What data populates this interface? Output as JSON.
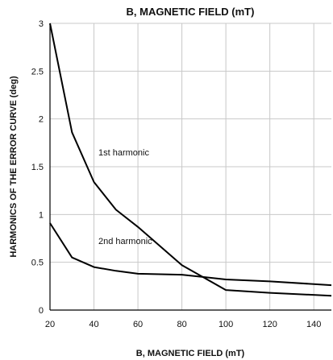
{
  "chart_data": {
    "type": "line",
    "title": "B, MAGNETIC FIELD (mT)",
    "xlabel": "B, MAGNETIC FIELD (mT)",
    "ylabel": "HARMONICS OF THE ERROR CURVE (deg)",
    "xlim": [
      20,
      148
    ],
    "ylim": [
      0,
      3
    ],
    "xticks": [
      20,
      40,
      60,
      80,
      100,
      120,
      140
    ],
    "yticks": [
      0,
      0.5,
      1,
      1.5,
      2,
      2.5,
      3
    ],
    "xtick_labels": [
      "20",
      "40",
      "60",
      "80",
      "100",
      "120",
      "140"
    ],
    "ytick_labels": [
      "0",
      "0.5",
      "1",
      "1.5",
      "2",
      "2.5",
      "3"
    ],
    "grid": true,
    "legend": false,
    "series_color": "#000000",
    "grid_color": "#c8c8c8",
    "series": [
      {
        "name": "1st harmonic",
        "x": [
          20,
          30,
          40,
          50,
          60,
          80,
          100,
          120,
          148
        ],
        "y": [
          3.0,
          1.86,
          1.34,
          1.05,
          0.87,
          0.47,
          0.21,
          0.18,
          0.15
        ]
      },
      {
        "name": "2nd harmonic",
        "x": [
          20,
          30,
          40,
          50,
          60,
          80,
          100,
          120,
          148
        ],
        "y": [
          0.91,
          0.55,
          0.45,
          0.41,
          0.38,
          0.37,
          0.32,
          0.3,
          0.26
        ]
      }
    ],
    "annotations": [
      {
        "text": "1st harmonic",
        "x": 42,
        "y": 1.62
      },
      {
        "text": "2nd harmonic",
        "x": 42,
        "y": 0.69
      }
    ]
  }
}
